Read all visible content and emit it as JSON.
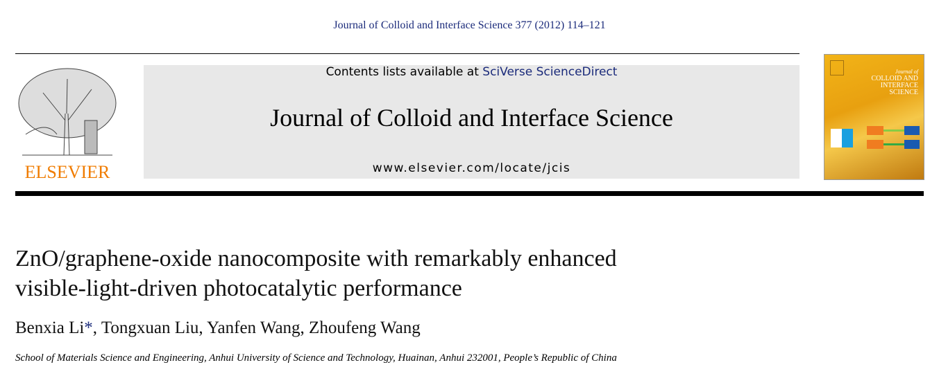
{
  "header": {
    "citation": "Journal of Colloid and Interface Science 377 (2012) 114–121",
    "contents_prefix": "Contents lists available at ",
    "contents_link": "SciVerse ScienceDirect",
    "journal_title": "Journal of Colloid and Interface Science",
    "journal_url": "www.elsevier.com/locate/jcis",
    "publisher_logo": "ELSEVIER",
    "cover_text": [
      "Journal of",
      "COLLOID AND",
      "INTERFACE",
      "SCIENCE"
    ]
  },
  "article": {
    "title_line1": "ZnO/graphene-oxide nanocomposite with remarkably enhanced",
    "title_line2": "visible-light-driven photocatalytic performance",
    "author_first": "Benxia Li",
    "corresponding_mark": "*",
    "authors_rest": ", Tongxuan Liu, Yanfen Wang, Zhoufeng Wang",
    "affiliation": "School of Materials Science and Engineering, Anhui University of Science and Technology, Huainan, Anhui 232001, People’s Republic of China"
  },
  "colors": {
    "link": "#1a2a7a",
    "elsevier_orange": "#f07c00",
    "cover": "#f2b418"
  }
}
